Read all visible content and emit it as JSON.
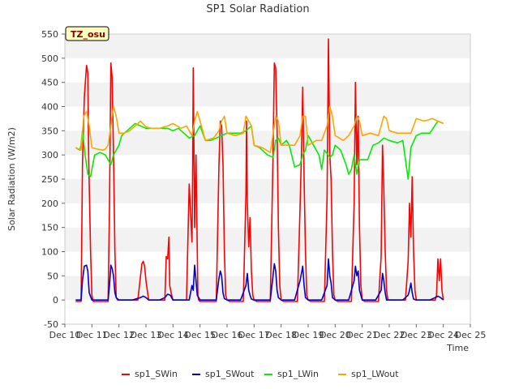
{
  "chart_data": {
    "type": "line",
    "title": "SP1 Solar Radiation",
    "xlabel": "Time",
    "ylabel": "Solar Radiation (W/m2)",
    "badge": "TZ_osu",
    "xlim": [
      10,
      25
    ],
    "ylim": [
      -50,
      550
    ],
    "yticks": [
      -50,
      0,
      50,
      100,
      150,
      200,
      250,
      300,
      350,
      400,
      450,
      500,
      550
    ],
    "xticks": [
      10,
      11,
      12,
      13,
      14,
      15,
      16,
      17,
      18,
      19,
      20,
      21,
      22,
      23,
      24,
      25
    ],
    "xtick_labels": [
      "Dec 10",
      "Dec 11",
      "Dec 12",
      "Dec 13",
      "Dec 14",
      "Dec 15",
      "Dec 16",
      "Dec 17",
      "Dec 18",
      "Dec 19",
      "Dec 20",
      "Dec 21",
      "Dec 22",
      "Dec 23",
      "Dec 24",
      "Dec 25"
    ],
    "grid": "horizontal-bands",
    "legend_position": "bottom",
    "series": [
      {
        "name": "sp1_SWin",
        "color": "#ff0000",
        "x": [
          10.4,
          10.6,
          10.65,
          10.72,
          10.8,
          10.85,
          10.88,
          10.95,
          11.0,
          11.05,
          11.08,
          11.12,
          11.2,
          11.5,
          11.6,
          11.65,
          11.7,
          11.75,
          11.8,
          11.85,
          11.9,
          11.95,
          12.0,
          12.05,
          12.1,
          12.5,
          12.7,
          12.8,
          12.85,
          12.9,
          12.95,
          13.0,
          13.1,
          13.5,
          13.7,
          13.75,
          13.8,
          13.85,
          13.88,
          13.95,
          14.0,
          14.1,
          14.5,
          14.6,
          14.7,
          14.72,
          14.75,
          14.8,
          14.85,
          14.9,
          14.92,
          14.95,
          15.0,
          15.05,
          15.1,
          15.5,
          15.6,
          15.7,
          15.75,
          15.8,
          15.85,
          15.9,
          15.95,
          16.0,
          16.1,
          16.5,
          16.6,
          16.7,
          16.72,
          16.75,
          16.8,
          16.85,
          16.9,
          16.95,
          17.0,
          17.1,
          17.5,
          17.6,
          17.7,
          17.75,
          17.8,
          17.85,
          17.9,
          17.95,
          18.0,
          18.1,
          18.5,
          18.6,
          18.7,
          18.75,
          18.8,
          18.85,
          18.9,
          18.95,
          19.0,
          19.1,
          19.5,
          19.6,
          19.7,
          19.75,
          19.8,
          19.85,
          19.9,
          19.95,
          20.0,
          20.1,
          20.5,
          20.6,
          20.7,
          20.75,
          20.8,
          20.85,
          20.9,
          20.95,
          21.0,
          21.1,
          21.5,
          21.6,
          21.7,
          21.75,
          21.8,
          21.85,
          21.9,
          21.95,
          22.0,
          22.1,
          22.5,
          22.6,
          22.7,
          22.75,
          22.8,
          22.85,
          22.9,
          22.95,
          23.0,
          23.1,
          23.5,
          23.6,
          23.7,
          23.75,
          23.8,
          23.85,
          23.9,
          23.95,
          24.0
        ],
        "y": [
          -3,
          -3,
          280,
          420,
          485,
          470,
          300,
          100,
          10,
          -3,
          -3,
          -3,
          -3,
          -3,
          -3,
          190,
          490,
          460,
          300,
          100,
          5,
          0,
          0,
          0,
          0,
          0,
          0,
          50,
          75,
          80,
          70,
          40,
          0,
          0,
          0,
          90,
          85,
          130,
          30,
          10,
          0,
          0,
          0,
          240,
          120,
          200,
          480,
          150,
          300,
          100,
          10,
          0,
          -3,
          -3,
          -3,
          -3,
          -3,
          280,
          370,
          360,
          280,
          100,
          10,
          0,
          -3,
          -3,
          -3,
          220,
          370,
          200,
          110,
          170,
          60,
          10,
          0,
          -3,
          -3,
          -3,
          300,
          490,
          480,
          350,
          150,
          30,
          0,
          -3,
          -3,
          -3,
          190,
          300,
          440,
          250,
          100,
          10,
          0,
          -3,
          -3,
          -3,
          210,
          540,
          300,
          250,
          100,
          10,
          0,
          -3,
          -3,
          -3,
          200,
          450,
          280,
          380,
          150,
          30,
          0,
          -3,
          -3,
          -3,
          90,
          320,
          230,
          100,
          20,
          0,
          0,
          0,
          0,
          0,
          80,
          200,
          130,
          255,
          100,
          20,
          0,
          0,
          0,
          0,
          0,
          10,
          85,
          40,
          85,
          20,
          0
        ]
      },
      {
        "name": "sp1_SWout",
        "color": "#0000cc",
        "x": [
          10.4,
          10.6,
          10.65,
          10.72,
          10.8,
          10.85,
          10.9,
          11.0,
          11.5,
          11.6,
          11.65,
          11.7,
          11.75,
          11.8,
          11.85,
          11.9,
          12.0,
          12.5,
          12.8,
          12.9,
          13.0,
          13.1,
          13.5,
          13.7,
          13.8,
          13.9,
          14.0,
          14.5,
          14.6,
          14.7,
          14.75,
          14.8,
          14.85,
          14.9,
          15.0,
          15.5,
          15.6,
          15.7,
          15.75,
          15.8,
          15.85,
          15.9,
          16.0,
          16.5,
          16.7,
          16.75,
          16.8,
          16.85,
          16.9,
          17.0,
          17.5,
          17.6,
          17.7,
          17.75,
          17.8,
          17.85,
          17.9,
          18.0,
          18.5,
          18.7,
          18.75,
          18.8,
          18.85,
          18.9,
          19.0,
          19.5,
          19.7,
          19.75,
          19.8,
          19.85,
          19.9,
          20.0,
          20.5,
          20.7,
          20.75,
          20.8,
          20.85,
          20.9,
          21.0,
          21.5,
          21.7,
          21.75,
          21.8,
          21.85,
          21.9,
          22.0,
          22.5,
          22.7,
          22.75,
          22.8,
          22.85,
          22.9,
          23.0,
          23.5,
          23.7,
          23.8,
          23.9,
          24.0
        ],
        "y": [
          0,
          0,
          40,
          70,
          72,
          60,
          15,
          0,
          0,
          0,
          30,
          72,
          65,
          50,
          15,
          5,
          0,
          0,
          5,
          8,
          5,
          0,
          0,
          5,
          12,
          10,
          0,
          0,
          0,
          30,
          20,
          72,
          40,
          10,
          0,
          0,
          0,
          45,
          60,
          50,
          15,
          3,
          0,
          0,
          30,
          55,
          20,
          10,
          2,
          0,
          0,
          0,
          50,
          75,
          60,
          20,
          5,
          0,
          0,
          40,
          55,
          70,
          30,
          5,
          0,
          0,
          30,
          85,
          50,
          35,
          5,
          0,
          0,
          40,
          70,
          50,
          60,
          20,
          0,
          0,
          20,
          55,
          40,
          15,
          0,
          0,
          0,
          10,
          20,
          35,
          15,
          2,
          0,
          0,
          5,
          8,
          5,
          0
        ]
      },
      {
        "name": "sp1_LWin",
        "color": "#00ee00",
        "x": [
          10.4,
          10.55,
          10.6,
          10.65,
          10.75,
          10.85,
          10.95,
          11.0,
          11.1,
          11.3,
          11.5,
          11.6,
          11.7,
          11.8,
          11.9,
          12.0,
          12.1,
          12.3,
          12.6,
          12.8,
          13.0,
          13.2,
          13.5,
          13.8,
          14.0,
          14.2,
          14.4,
          14.6,
          14.8,
          14.9,
          15.0,
          15.2,
          15.4,
          15.6,
          15.8,
          16.0,
          16.2,
          16.5,
          16.7,
          16.8,
          16.9,
          17.0,
          17.2,
          17.5,
          17.7,
          17.8,
          17.9,
          18.0,
          18.2,
          18.3,
          18.5,
          18.7,
          18.8,
          18.9,
          19.0,
          19.2,
          19.4,
          19.5,
          19.6,
          19.8,
          19.9,
          20.0,
          20.2,
          20.4,
          20.5,
          20.6,
          20.7,
          20.8,
          20.9,
          21.0,
          21.2,
          21.4,
          21.6,
          21.7,
          21.8,
          22.0,
          22.3,
          22.5,
          22.7,
          22.8,
          23.0,
          23.2,
          23.5,
          23.8,
          24.0
        ],
        "y": [
          315,
          310,
          320,
          350,
          300,
          260,
          255,
          270,
          300,
          305,
          300,
          290,
          280,
          300,
          310,
          320,
          340,
          350,
          365,
          360,
          355,
          355,
          355,
          355,
          350,
          355,
          345,
          335,
          340,
          350,
          360,
          330,
          330,
          335,
          340,
          345,
          345,
          345,
          350,
          355,
          360,
          320,
          315,
          300,
          295,
          330,
          335,
          320,
          330,
          320,
          275,
          280,
          300,
          310,
          340,
          320,
          300,
          270,
          310,
          295,
          300,
          320,
          310,
          280,
          260,
          270,
          300,
          260,
          290,
          290,
          290,
          320,
          325,
          330,
          335,
          330,
          325,
          330,
          250,
          315,
          340,
          345,
          345,
          370,
          365
        ]
      },
      {
        "name": "sp1_LWout",
        "color": "#ffa500",
        "x": [
          10.4,
          10.6,
          10.7,
          10.8,
          10.9,
          11.0,
          11.2,
          11.4,
          11.5,
          11.6,
          11.7,
          11.8,
          11.9,
          12.0,
          12.2,
          12.4,
          12.6,
          12.8,
          13.0,
          13.2,
          13.5,
          13.8,
          14.0,
          14.3,
          14.5,
          14.7,
          14.8,
          14.9,
          15.0,
          15.2,
          15.5,
          15.7,
          15.8,
          15.9,
          16.0,
          16.3,
          16.6,
          16.7,
          16.8,
          16.9,
          17.0,
          17.3,
          17.6,
          17.8,
          17.9,
          18.0,
          18.2,
          18.5,
          18.7,
          18.8,
          18.9,
          19.0,
          19.3,
          19.5,
          19.7,
          19.8,
          19.9,
          20.0,
          20.3,
          20.5,
          20.7,
          20.8,
          20.9,
          21.0,
          21.3,
          21.6,
          21.8,
          21.9,
          22.0,
          22.3,
          22.6,
          22.8,
          23.0,
          23.3,
          23.6,
          23.8,
          24.0
        ],
        "y": [
          315,
          310,
          380,
          390,
          360,
          315,
          312,
          310,
          312,
          320,
          360,
          400,
          380,
          345,
          345,
          350,
          360,
          370,
          358,
          355,
          355,
          360,
          365,
          355,
          360,
          340,
          370,
          390,
          370,
          330,
          335,
          350,
          370,
          380,
          345,
          340,
          345,
          380,
          370,
          360,
          320,
          315,
          305,
          380,
          370,
          320,
          320,
          320,
          340,
          380,
          380,
          320,
          330,
          330,
          360,
          400,
          380,
          340,
          330,
          340,
          360,
          380,
          370,
          340,
          345,
          340,
          380,
          375,
          350,
          345,
          345,
          345,
          375,
          370,
          375,
          370,
          365
        ]
      }
    ]
  }
}
